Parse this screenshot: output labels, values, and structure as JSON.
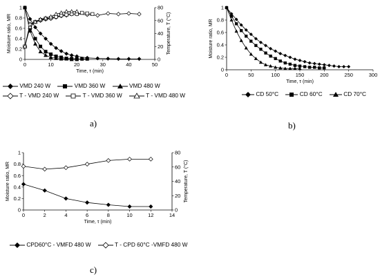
{
  "chart_data": [
    {
      "panel": "a)",
      "type": "line",
      "xlabel": "Time, τ (min)",
      "ylabel": "Moisture ratio, MR",
      "y2label": "Temperature, T (°C)",
      "xlim": [
        0,
        50
      ],
      "xticks": [
        0,
        10,
        20,
        30,
        40,
        50
      ],
      "ylim": [
        0,
        1
      ],
      "yticks": [
        0,
        0.2,
        0.4,
        0.6,
        0.8,
        1
      ],
      "y2lim": [
        0,
        80
      ],
      "y2ticks": [
        0,
        20,
        40,
        60,
        80
      ],
      "legend_position": "bottom",
      "series": [
        {
          "name": "VMD 240 W",
          "axis": "y",
          "marker": "diamond-filled",
          "x": [
            0,
            2,
            4,
            6,
            8,
            10,
            12,
            14,
            16,
            18,
            20,
            24,
            28,
            32,
            36,
            40,
            44
          ],
          "y": [
            1.0,
            0.78,
            0.62,
            0.5,
            0.4,
            0.3,
            0.22,
            0.16,
            0.11,
            0.08,
            0.06,
            0.03,
            0.02,
            0.015,
            0.01,
            0.01,
            0.01
          ]
        },
        {
          "name": "VMD 360 W",
          "axis": "y",
          "marker": "square-filled",
          "x": [
            0,
            2,
            4,
            6,
            8,
            10,
            12,
            14,
            16,
            18,
            20,
            22,
            24
          ],
          "y": [
            1.0,
            0.6,
            0.4,
            0.25,
            0.15,
            0.1,
            0.06,
            0.04,
            0.02,
            0.015,
            0.01,
            0.01,
            0.01
          ]
        },
        {
          "name": "VMD 480 W",
          "axis": "y",
          "marker": "triangle-filled",
          "x": [
            0,
            2,
            4,
            6,
            8,
            10,
            12,
            14,
            16,
            18,
            20
          ],
          "y": [
            1.0,
            0.55,
            0.3,
            0.15,
            0.08,
            0.04,
            0.02,
            0.01,
            0.01,
            0.0,
            0.0
          ]
        },
        {
          "name": "T -  VMD 240 W",
          "axis": "y2",
          "marker": "diamond-open",
          "x": [
            0,
            2,
            4,
            6,
            8,
            10,
            12,
            14,
            16,
            18,
            20,
            24,
            28,
            32,
            36,
            40,
            44
          ],
          "y": [
            20,
            55,
            58,
            60,
            62,
            63,
            65,
            67,
            68,
            70,
            70,
            69,
            68,
            71,
            70,
            71,
            70
          ]
        },
        {
          "name": "T -  VMD 360 W",
          "axis": "y2",
          "marker": "square-open",
          "x": [
            0,
            2,
            4,
            6,
            8,
            10,
            12,
            14,
            16,
            18,
            20,
            22,
            24,
            26
          ],
          "y": [
            20,
            53,
            58,
            61,
            63,
            64,
            66,
            68,
            69,
            70,
            70,
            72,
            71,
            70
          ]
        },
        {
          "name": "T -  VMD 480 W",
          "axis": "y2",
          "marker": "triangle-open",
          "x": [
            0,
            2,
            4,
            6,
            8,
            10,
            12,
            14,
            16,
            18,
            20
          ],
          "y": [
            20,
            50,
            58,
            62,
            64,
            66,
            70,
            72,
            74,
            74,
            74
          ]
        }
      ]
    },
    {
      "panel": "b)",
      "type": "line",
      "xlabel": "Time, τ (min)",
      "ylabel": "Moisture ratio, MR",
      "xlim": [
        0,
        300
      ],
      "xticks": [
        0,
        50,
        100,
        150,
        200,
        250,
        300
      ],
      "ylim": [
        0,
        1
      ],
      "yticks": [
        0,
        0.2,
        0.4,
        0.6,
        0.8,
        1
      ],
      "legend_position": "bottom",
      "series": [
        {
          "name": "CD 50°C",
          "marker": "diamond-filled",
          "x": [
            0,
            10,
            20,
            30,
            40,
            50,
            60,
            70,
            80,
            90,
            100,
            110,
            120,
            130,
            140,
            150,
            160,
            170,
            180,
            190,
            200,
            210,
            220,
            230,
            240,
            250
          ],
          "y": [
            1.0,
            0.9,
            0.81,
            0.72,
            0.64,
            0.57,
            0.5,
            0.44,
            0.39,
            0.34,
            0.3,
            0.26,
            0.23,
            0.2,
            0.17,
            0.15,
            0.13,
            0.11,
            0.1,
            0.09,
            0.08,
            0.07,
            0.06,
            0.05,
            0.05,
            0.05
          ]
        },
        {
          "name": "CD 60°C",
          "marker": "square-filled",
          "x": [
            0,
            10,
            20,
            30,
            40,
            50,
            60,
            70,
            80,
            90,
            100,
            110,
            120,
            130,
            140,
            150,
            160,
            170,
            180,
            190,
            200
          ],
          "y": [
            1.0,
            0.86,
            0.74,
            0.63,
            0.54,
            0.46,
            0.39,
            0.33,
            0.27,
            0.22,
            0.18,
            0.14,
            0.11,
            0.09,
            0.07,
            0.06,
            0.05,
            0.04,
            0.04,
            0.03,
            0.03
          ]
        },
        {
          "name": "CD 70°C",
          "marker": "triangle-filled",
          "x": [
            0,
            10,
            20,
            30,
            40,
            50,
            60,
            70,
            80,
            90,
            100,
            110,
            120,
            130,
            140,
            150
          ],
          "y": [
            1.0,
            0.8,
            0.62,
            0.47,
            0.35,
            0.25,
            0.18,
            0.12,
            0.08,
            0.06,
            0.04,
            0.03,
            0.02,
            0.02,
            0.02,
            0.02
          ]
        }
      ]
    },
    {
      "panel": "c)",
      "type": "line",
      "xlabel": "Time, τ (min)",
      "ylabel": "Moisture ratio, MR",
      "y2label": "Temperature, T (°C)",
      "xlim": [
        0,
        14
      ],
      "xticks": [
        0,
        2,
        4,
        6,
        8,
        10,
        12,
        14
      ],
      "ylim": [
        0,
        1
      ],
      "yticks": [
        0,
        0.2,
        0.4,
        0.6,
        0.8,
        1
      ],
      "y2lim": [
        0,
        80
      ],
      "y2ticks": [
        0,
        20,
        40,
        60,
        80
      ],
      "legend_position": "bottom",
      "series": [
        {
          "name": "CPD60°C - VMFD 480 W",
          "axis": "y",
          "marker": "diamond-filled",
          "x": [
            0,
            2,
            4,
            6,
            8,
            10,
            12
          ],
          "y": [
            0.45,
            0.34,
            0.2,
            0.13,
            0.09,
            0.06,
            0.06
          ]
        },
        {
          "name": "T - CPD 60°C -VMFD 480 W",
          "axis": "y2",
          "marker": "diamond-open",
          "x": [
            0,
            2,
            4,
            6,
            8,
            10,
            12
          ],
          "y": [
            61,
            57,
            59,
            64,
            69,
            71,
            71
          ]
        }
      ]
    }
  ],
  "legend_a": [
    "VMD 240 W",
    "VMD 360 W",
    "VMD 480 W",
    "T -  VMD 240 W",
    "T -  VMD 360 W",
    "T -  VMD 480 W"
  ],
  "legend_b": [
    "CD 50°C",
    "CD 60°C",
    "CD 70°C"
  ],
  "legend_c": [
    "CPD60°C - VMFD 480 W",
    "T - CPD 60°C -VMFD 480 W"
  ]
}
